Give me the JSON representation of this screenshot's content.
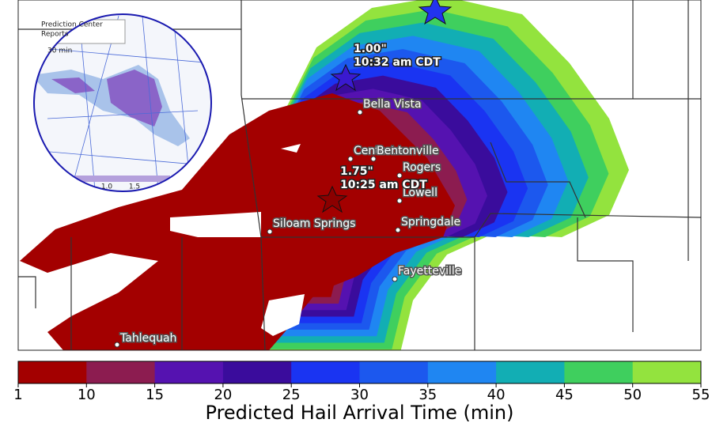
{
  "map": {
    "cities": [
      "Bella Vista",
      "Centerton",
      "Bentonville",
      "Rogers",
      "Lowell",
      "Springdale",
      "Siloam Springs",
      "Fayetteville",
      "Tahlequah"
    ],
    "annotations": [
      {
        "size": "1.00\"",
        "time": "10:32 am CDT"
      },
      {
        "size": "1.75\"",
        "time": "10:25 am CDT"
      }
    ],
    "inset": {
      "texts": [
        "Prediction Center",
        "Reports",
        "30 min"
      ],
      "colorbar_ticks": [
        "1.0",
        "1.5"
      ]
    }
  },
  "colorbar": {
    "bounds": [
      1,
      10,
      15,
      20,
      25,
      30,
      35,
      40,
      45,
      50,
      55
    ],
    "colors": [
      "#a30000",
      "#8c1c50",
      "#5512b0",
      "#3a0c9c",
      "#1a34f2",
      "#1c58ee",
      "#1f86f2",
      "#12aeb4",
      "#3fcf5e",
      "#93e33e"
    ],
    "label": "Predicted Hail Arrival Time (min)"
  }
}
